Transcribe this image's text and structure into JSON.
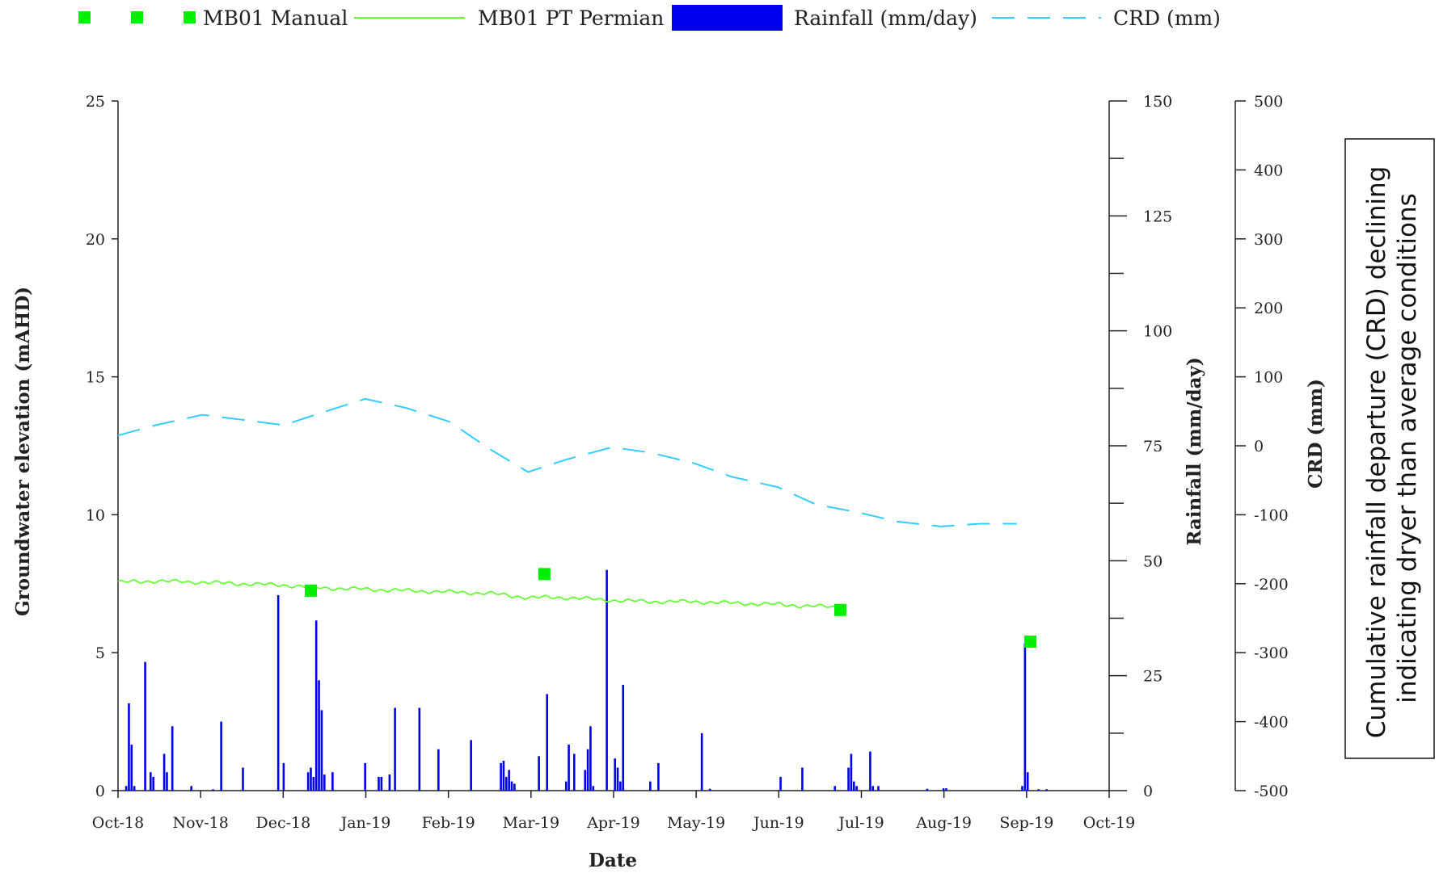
{
  "chart_data": {
    "type": "line",
    "title": "",
    "xlabel": "Date",
    "ylabel": "Groundwater elevation (mAHD)",
    "y2label": "Rainfall (mm/day)",
    "y3label": "CRD (mm)",
    "x_ticks": [
      "Oct-18",
      "Nov-18",
      "Dec-18",
      "Jan-19",
      "Feb-19",
      "Mar-19",
      "Apr-19",
      "May-19",
      "Jun-19",
      "Jul-19",
      "Aug-19",
      "Sep-19",
      "Oct-19"
    ],
    "x_range": [
      "2018-10-01",
      "2019-10-01"
    ],
    "ylim": [
      0,
      25
    ],
    "y_ticks": [
      "0",
      "5",
      "10",
      "15",
      "20",
      "25"
    ],
    "y2lim": [
      0,
      150
    ],
    "y2_ticks": [
      "0",
      "25",
      "50",
      "75",
      "100",
      "125",
      "150"
    ],
    "y3lim": [
      -500,
      500
    ],
    "y3_ticks": [
      "-500",
      "-400",
      "-300",
      "-200",
      "-100",
      "0",
      "100",
      "200",
      "300",
      "400",
      "500"
    ],
    "legend_position": "top",
    "legend": [
      {
        "label": "MB01 Manual",
        "color": "#00ee00"
      },
      {
        "label": "MB01 PT Permian",
        "color": "#66ff33"
      },
      {
        "label": "Rainfall (mm/day)",
        "color": "#0000ee"
      },
      {
        "label": "CRD (mm)",
        "color": "#33ccff"
      }
    ],
    "series": [
      {
        "name": "MB01 Manual",
        "kind": "scatter",
        "axis": "left",
        "color": "#00ee00",
        "points": [
          {
            "x": "2018-12-11",
            "y": 7.25
          },
          {
            "x": "2019-03-07",
            "y": 7.85
          },
          {
            "x": "2019-06-24",
            "y": 6.55
          },
          {
            "x": "2019-09-02",
            "y": 5.4
          }
        ]
      },
      {
        "name": "MB01 PT Permian",
        "kind": "line",
        "axis": "left",
        "color": "#66ff33",
        "points": [
          {
            "x": "2018-10-01",
            "y": 7.55
          },
          {
            "x": "2018-10-15",
            "y": 7.6
          },
          {
            "x": "2018-11-01",
            "y": 7.55
          },
          {
            "x": "2018-11-15",
            "y": 7.5
          },
          {
            "x": "2018-12-01",
            "y": 7.45
          },
          {
            "x": "2018-12-15",
            "y": 7.35
          },
          {
            "x": "2019-01-01",
            "y": 7.3
          },
          {
            "x": "2019-01-15",
            "y": 7.25
          },
          {
            "x": "2019-02-01",
            "y": 7.2
          },
          {
            "x": "2019-02-15",
            "y": 7.15
          },
          {
            "x": "2019-03-01",
            "y": 7.0
          },
          {
            "x": "2019-03-15",
            "y": 7.0
          },
          {
            "x": "2019-04-01",
            "y": 6.9
          },
          {
            "x": "2019-04-15",
            "y": 6.85
          },
          {
            "x": "2019-05-01",
            "y": 6.85
          },
          {
            "x": "2019-05-15",
            "y": 6.8
          },
          {
            "x": "2019-06-01",
            "y": 6.75
          },
          {
            "x": "2019-06-10",
            "y": 6.7
          },
          {
            "x": "2019-06-24",
            "y": 6.65
          }
        ]
      },
      {
        "name": "Rainfall (mm/day)",
        "kind": "bar",
        "axis": "right1",
        "color": "#0000ee",
        "points": [
          {
            "x": "2018-10-04",
            "y": 1
          },
          {
            "x": "2018-10-05",
            "y": 19
          },
          {
            "x": "2018-10-06",
            "y": 10
          },
          {
            "x": "2018-10-07",
            "y": 1
          },
          {
            "x": "2018-10-11",
            "y": 28
          },
          {
            "x": "2018-10-13",
            "y": 4
          },
          {
            "x": "2018-10-14",
            "y": 3
          },
          {
            "x": "2018-10-18",
            "y": 8
          },
          {
            "x": "2018-10-19",
            "y": 4
          },
          {
            "x": "2018-10-21",
            "y": 14
          },
          {
            "x": "2018-10-28",
            "y": 1
          },
          {
            "x": "2018-11-05",
            "y": 0.3
          },
          {
            "x": "2018-11-08",
            "y": 15
          },
          {
            "x": "2018-11-16",
            "y": 5
          },
          {
            "x": "2018-11-29",
            "y": 42.5
          },
          {
            "x": "2018-12-01",
            "y": 6
          },
          {
            "x": "2018-12-10",
            "y": 4
          },
          {
            "x": "2018-12-11",
            "y": 5
          },
          {
            "x": "2018-12-12",
            "y": 3
          },
          {
            "x": "2018-12-13",
            "y": 37
          },
          {
            "x": "2018-12-14",
            "y": 24
          },
          {
            "x": "2018-12-15",
            "y": 17.5
          },
          {
            "x": "2018-12-16",
            "y": 3.5
          },
          {
            "x": "2018-12-19",
            "y": 4
          },
          {
            "x": "2018-12-31",
            "y": 6
          },
          {
            "x": "2019-01-05",
            "y": 3
          },
          {
            "x": "2019-01-06",
            "y": 3
          },
          {
            "x": "2019-01-09",
            "y": 3.5
          },
          {
            "x": "2019-01-11",
            "y": 18
          },
          {
            "x": "2019-01-20",
            "y": 18
          },
          {
            "x": "2019-01-27",
            "y": 9
          },
          {
            "x": "2019-02-08",
            "y": 11
          },
          {
            "x": "2019-02-19",
            "y": 6
          },
          {
            "x": "2019-02-20",
            "y": 6.5
          },
          {
            "x": "2019-02-21",
            "y": 3
          },
          {
            "x": "2019-02-22",
            "y": 4.5
          },
          {
            "x": "2019-02-23",
            "y": 2
          },
          {
            "x": "2019-02-24",
            "y": 1.5
          },
          {
            "x": "2019-03-05",
            "y": 7.5
          },
          {
            "x": "2019-03-08",
            "y": 21
          },
          {
            "x": "2019-03-15",
            "y": 2
          },
          {
            "x": "2019-03-16",
            "y": 10
          },
          {
            "x": "2019-03-18",
            "y": 8
          },
          {
            "x": "2019-03-22",
            "y": 4.5
          },
          {
            "x": "2019-03-23",
            "y": 9
          },
          {
            "x": "2019-03-24",
            "y": 14
          },
          {
            "x": "2019-03-25",
            "y": 1
          },
          {
            "x": "2019-03-30",
            "y": 48
          },
          {
            "x": "2019-04-02",
            "y": 7
          },
          {
            "x": "2019-04-03",
            "y": 5
          },
          {
            "x": "2019-04-04",
            "y": 2
          },
          {
            "x": "2019-04-05",
            "y": 23
          },
          {
            "x": "2019-04-15",
            "y": 2
          },
          {
            "x": "2019-04-18",
            "y": 6
          },
          {
            "x": "2019-05-04",
            "y": 12.5
          },
          {
            "x": "2019-05-07",
            "y": 0.4
          },
          {
            "x": "2019-06-02",
            "y": 3
          },
          {
            "x": "2019-06-10",
            "y": 5
          },
          {
            "x": "2019-06-22",
            "y": 1
          },
          {
            "x": "2019-06-27",
            "y": 5
          },
          {
            "x": "2019-06-28",
            "y": 8
          },
          {
            "x": "2019-06-29",
            "y": 2
          },
          {
            "x": "2019-06-30",
            "y": 1
          },
          {
            "x": "2019-07-05",
            "y": 8.5
          },
          {
            "x": "2019-07-06",
            "y": 1
          },
          {
            "x": "2019-07-08",
            "y": 1
          },
          {
            "x": "2019-07-26",
            "y": 0.4
          },
          {
            "x": "2019-08-01",
            "y": 0.5
          },
          {
            "x": "2019-08-02",
            "y": 0.5
          },
          {
            "x": "2019-08-30",
            "y": 1
          },
          {
            "x": "2019-08-31",
            "y": 32
          },
          {
            "x": "2019-09-01",
            "y": 4
          },
          {
            "x": "2019-09-05",
            "y": 0.3
          },
          {
            "x": "2019-09-08",
            "y": 0.3
          }
        ]
      },
      {
        "name": "CRD (mm)",
        "kind": "line",
        "axis": "right2",
        "color": "#33ccff",
        "points": [
          {
            "x": "2018-10-01",
            "y": 15
          },
          {
            "x": "2018-10-15",
            "y": 30
          },
          {
            "x": "2018-11-01",
            "y": 45
          },
          {
            "x": "2018-11-15",
            "y": 38
          },
          {
            "x": "2018-12-01",
            "y": 30
          },
          {
            "x": "2018-12-15",
            "y": 48
          },
          {
            "x": "2018-12-31",
            "y": 68
          },
          {
            "x": "2019-01-15",
            "y": 55
          },
          {
            "x": "2019-01-31",
            "y": 35
          },
          {
            "x": "2019-02-15",
            "y": -5
          },
          {
            "x": "2019-03-01",
            "y": -38
          },
          {
            "x": "2019-03-15",
            "y": -20
          },
          {
            "x": "2019-04-01",
            "y": -2
          },
          {
            "x": "2019-04-15",
            "y": -10
          },
          {
            "x": "2019-05-01",
            "y": -25
          },
          {
            "x": "2019-05-15",
            "y": -45
          },
          {
            "x": "2019-06-01",
            "y": -60
          },
          {
            "x": "2019-06-15",
            "y": -85
          },
          {
            "x": "2019-07-01",
            "y": -97
          },
          {
            "x": "2019-07-15",
            "y": -110
          },
          {
            "x": "2019-07-31",
            "y": -117
          },
          {
            "x": "2019-08-15",
            "y": -113
          },
          {
            "x": "2019-08-28",
            "y": -113
          }
        ]
      }
    ],
    "annotation": "Cumulative rainfall departure (CRD) declining indicating dryer than average conditions",
    "grid": false
  }
}
